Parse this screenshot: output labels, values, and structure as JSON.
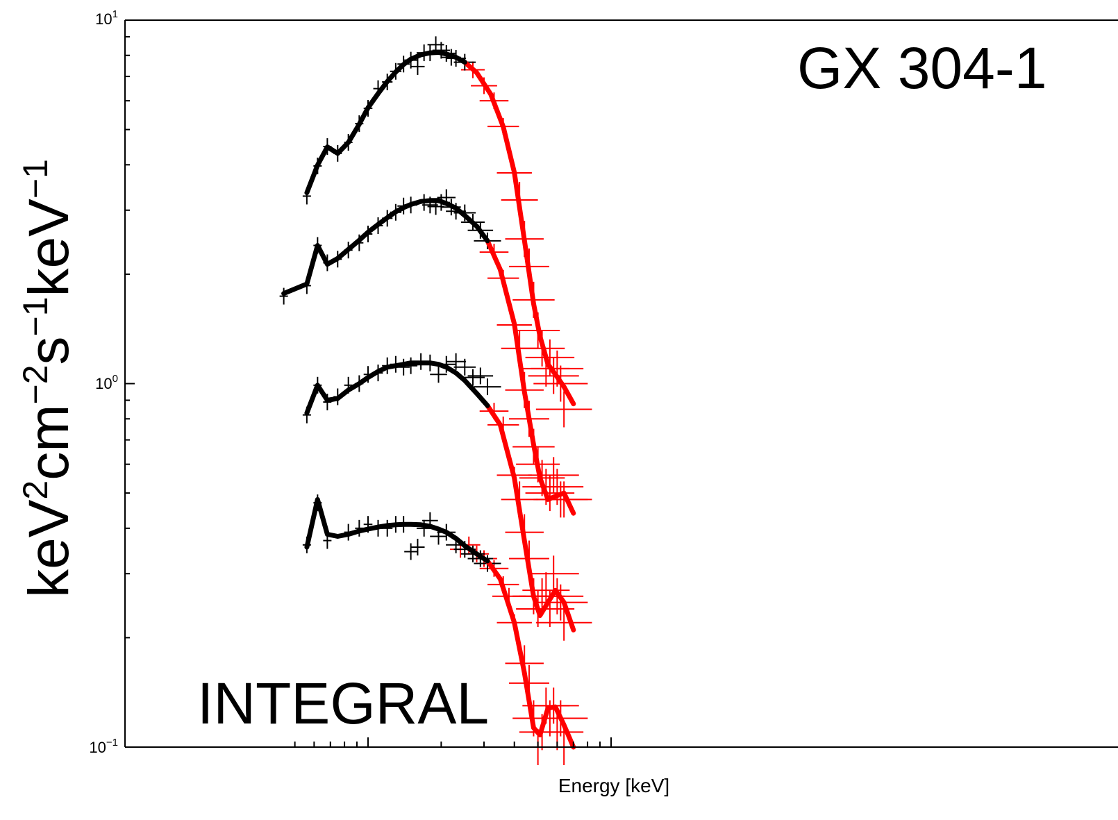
{
  "chart_data": {
    "type": "line",
    "title": "",
    "xlabel": "Energy [keV]",
    "ylabel_parts": [
      "keV",
      "2",
      "cm",
      "−2",
      "s",
      "−1",
      "keV",
      "−1"
    ],
    "yscale": "log",
    "xscale": "log",
    "ylim": [
      0.1,
      10
    ],
    "xlim": [
      4.5,
      100
    ],
    "grid": false,
    "legend": "none",
    "y_ticks": [
      {
        "value": 10,
        "base": "10",
        "exp": "1"
      },
      {
        "value": 1,
        "base": "10",
        "exp": "0"
      },
      {
        "value": 0.1,
        "base": "10",
        "exp": "−1"
      }
    ],
    "x_minor_ticks": [
      5,
      6,
      7,
      8,
      9,
      10,
      20,
      30,
      40,
      50,
      60,
      70,
      80,
      90,
      100
    ],
    "annotations": [
      {
        "text": "GX 304-1",
        "position": "top-right"
      },
      {
        "text": "INTEGRAL",
        "position": "bottom-left"
      }
    ],
    "colors": {
      "jemx": "#000000",
      "isgri": "#ff0000",
      "axis": "#000000"
    },
    "series": [
      {
        "model_jemx": [
          [
            5.6,
            3.35
          ],
          [
            6.2,
            3.99
          ],
          [
            6.8,
            4.48
          ],
          [
            7.5,
            4.3
          ],
          [
            8.3,
            4.61
          ],
          [
            9.2,
            5.17
          ],
          [
            10,
            5.74
          ],
          [
            11,
            6.28
          ],
          [
            12,
            6.78
          ],
          [
            13,
            7.2
          ],
          [
            14,
            7.55
          ],
          [
            15,
            7.81
          ],
          [
            16.5,
            8.03
          ],
          [
            18,
            8.13
          ],
          [
            19.5,
            8.15
          ],
          [
            21,
            8.07
          ],
          [
            23,
            7.9
          ],
          [
            25,
            7.66
          ]
        ],
        "model_isgri": [
          [
            25,
            7.66
          ],
          [
            28,
            7.17
          ],
          [
            32,
            6.25
          ],
          [
            36,
            5.09
          ],
          [
            40,
            3.81
          ],
          [
            44,
            2.48
          ],
          [
            48,
            1.66
          ],
          [
            51,
            1.35
          ],
          [
            55,
            1.13
          ],
          [
            59,
            1.06
          ],
          [
            64,
            0.98
          ],
          [
            70,
            0.88
          ]
        ],
        "points_jemx": [
          [
            5.6,
            3.28
          ],
          [
            6.2,
            3.97
          ],
          [
            6.8,
            4.49
          ],
          [
            7.5,
            4.3
          ],
          [
            8.3,
            4.61
          ],
          [
            9.2,
            5.19
          ],
          [
            10,
            5.72
          ],
          [
            11,
            6.48
          ],
          [
            12,
            6.76
          ],
          [
            13,
            7.23
          ],
          [
            14,
            7.57
          ],
          [
            15,
            7.76
          ],
          [
            16,
            7.45
          ],
          [
            17,
            8.13
          ],
          [
            18,
            8.13
          ],
          [
            19,
            8.56
          ],
          [
            20,
            8.26
          ],
          [
            21,
            8.1
          ],
          [
            22,
            7.9
          ],
          [
            23,
            7.85
          ],
          [
            25,
            7.66
          ]
        ],
        "points_isgri": [
          [
            27,
            7.3
          ],
          [
            30,
            6.6
          ],
          [
            33,
            6.0
          ],
          [
            36,
            5.1
          ],
          [
            40,
            3.8
          ],
          [
            42,
            3.2
          ],
          [
            44,
            2.5
          ],
          [
            46,
            2.1
          ],
          [
            48,
            1.7
          ],
          [
            50,
            1.4
          ],
          [
            52,
            1.25
          ],
          [
            54,
            1.1
          ],
          [
            56,
            1.18
          ],
          [
            58,
            1.05
          ],
          [
            60,
            1.1
          ],
          [
            62,
            1.0
          ],
          [
            64,
            0.85
          ]
        ]
      },
      {
        "model_jemx": [
          [
            4.5,
            1.77
          ],
          [
            5.6,
            1.88
          ],
          [
            6.2,
            2.4
          ],
          [
            6.8,
            2.13
          ],
          [
            7.5,
            2.21
          ],
          [
            8.3,
            2.34
          ],
          [
            9.2,
            2.48
          ],
          [
            10,
            2.61
          ],
          [
            11,
            2.74
          ],
          [
            12,
            2.86
          ],
          [
            13,
            2.97
          ],
          [
            14,
            3.05
          ],
          [
            15,
            3.11
          ],
          [
            16.5,
            3.17
          ],
          [
            18,
            3.19
          ],
          [
            19.5,
            3.19
          ],
          [
            21,
            3.13
          ],
          [
            23,
            3.04
          ],
          [
            25,
            2.9
          ],
          [
            28,
            2.71
          ],
          [
            31,
            2.47
          ]
        ],
        "model_isgri": [
          [
            31,
            2.47
          ],
          [
            35,
            2.06
          ],
          [
            40,
            1.46
          ],
          [
            44,
            0.95
          ],
          [
            48,
            0.68
          ],
          [
            51,
            0.55
          ],
          [
            55,
            0.48
          ],
          [
            59,
            0.49
          ],
          [
            64,
            0.5
          ],
          [
            70,
            0.44
          ]
        ],
        "points_jemx": [
          [
            4.5,
            1.74
          ],
          [
            5.6,
            1.86
          ],
          [
            6.2,
            2.4
          ],
          [
            6.8,
            2.15
          ],
          [
            7.5,
            2.2
          ],
          [
            8.3,
            2.33
          ],
          [
            9.2,
            2.44
          ],
          [
            10,
            2.58
          ],
          [
            11,
            2.72
          ],
          [
            12,
            2.85
          ],
          [
            13,
            2.96
          ],
          [
            14,
            3.08
          ],
          [
            15,
            3.1
          ],
          [
            17,
            3.15
          ],
          [
            18,
            3.1
          ],
          [
            19,
            3.07
          ],
          [
            20,
            3.15
          ],
          [
            21,
            3.25
          ],
          [
            22,
            3.06
          ],
          [
            23,
            2.98
          ],
          [
            25,
            2.95
          ],
          [
            27,
            2.78
          ],
          [
            29,
            2.64
          ],
          [
            31,
            2.47
          ]
        ],
        "points_isgri": [
          [
            33,
            2.3
          ],
          [
            36,
            1.95
          ],
          [
            40,
            1.45
          ],
          [
            42,
            1.25
          ],
          [
            44,
            0.96
          ],
          [
            46,
            0.8
          ],
          [
            48,
            0.67
          ],
          [
            50,
            0.6
          ],
          [
            52,
            0.55
          ],
          [
            54,
            0.52
          ],
          [
            56,
            0.5
          ],
          [
            58,
            0.56
          ],
          [
            60,
            0.52
          ],
          [
            62,
            0.48
          ],
          [
            64,
            0.48
          ]
        ]
      },
      {
        "model_jemx": [
          [
            5.6,
            0.83
          ],
          [
            6.2,
            0.99
          ],
          [
            6.8,
            0.9
          ],
          [
            7.5,
            0.91
          ],
          [
            8.3,
            0.96
          ],
          [
            9.2,
            1.0
          ],
          [
            10,
            1.04
          ],
          [
            11,
            1.08
          ],
          [
            12,
            1.11
          ],
          [
            13,
            1.12
          ],
          [
            14,
            1.13
          ],
          [
            15,
            1.14
          ],
          [
            16.5,
            1.14
          ],
          [
            18,
            1.14
          ],
          [
            19.5,
            1.13
          ],
          [
            21,
            1.11
          ],
          [
            23,
            1.07
          ],
          [
            25,
            1.02
          ],
          [
            28,
            0.94
          ],
          [
            31,
            0.87
          ]
        ],
        "model_isgri": [
          [
            31,
            0.87
          ],
          [
            35,
            0.77
          ],
          [
            40,
            0.55
          ],
          [
            44,
            0.37
          ],
          [
            48,
            0.26
          ],
          [
            51,
            0.23
          ],
          [
            55,
            0.25
          ],
          [
            59,
            0.27
          ],
          [
            64,
            0.25
          ],
          [
            70,
            0.21
          ]
        ],
        "points_jemx": [
          [
            5.6,
            0.82
          ],
          [
            6.2,
            0.99
          ],
          [
            6.8,
            0.89
          ],
          [
            7.5,
            0.92
          ],
          [
            8.3,
            0.99
          ],
          [
            9.2,
            1.0
          ],
          [
            10,
            1.06
          ],
          [
            11,
            1.07
          ],
          [
            12,
            1.12
          ],
          [
            13,
            1.13
          ],
          [
            14,
            1.11
          ],
          [
            15,
            1.12
          ],
          [
            16.5,
            1.15
          ],
          [
            18,
            1.14
          ],
          [
            19.5,
            1.06
          ],
          [
            21,
            1.13
          ],
          [
            23,
            1.15
          ],
          [
            25,
            1.11
          ],
          [
            27,
            1.04
          ],
          [
            29,
            1.05
          ],
          [
            31,
            0.98
          ]
        ],
        "points_isgri": [
          [
            33,
            0.84
          ],
          [
            36,
            0.77
          ],
          [
            40,
            0.56
          ],
          [
            42,
            0.48
          ],
          [
            44,
            0.39
          ],
          [
            46,
            0.33
          ],
          [
            48,
            0.26
          ],
          [
            50,
            0.24
          ],
          [
            52,
            0.26
          ],
          [
            54,
            0.27
          ],
          [
            56,
            0.24
          ],
          [
            58,
            0.3
          ],
          [
            60,
            0.26
          ],
          [
            62,
            0.25
          ],
          [
            64,
            0.22
          ]
        ]
      },
      {
        "model_jemx": [
          [
            5.6,
            0.355
          ],
          [
            6.2,
            0.48
          ],
          [
            6.8,
            0.385
          ],
          [
            7.5,
            0.38
          ],
          [
            8.3,
            0.385
          ],
          [
            9.2,
            0.393
          ],
          [
            10,
            0.398
          ],
          [
            11,
            0.403
          ],
          [
            12,
            0.407
          ],
          [
            13,
            0.409
          ],
          [
            14,
            0.41
          ],
          [
            15,
            0.41
          ],
          [
            16.5,
            0.409
          ],
          [
            18,
            0.405
          ],
          [
            19.5,
            0.398
          ],
          [
            21,
            0.39
          ],
          [
            23,
            0.375
          ],
          [
            25,
            0.358
          ],
          [
            28,
            0.34
          ],
          [
            31,
            0.325
          ]
        ],
        "model_isgri": [
          [
            31,
            0.325
          ],
          [
            35,
            0.29
          ],
          [
            40,
            0.22
          ],
          [
            44,
            0.16
          ],
          [
            48,
            0.113
          ],
          [
            51,
            0.108
          ],
          [
            55,
            0.128
          ],
          [
            59,
            0.129
          ],
          [
            64,
            0.115
          ],
          [
            70,
            0.1
          ]
        ],
        "points_jemx": [
          [
            5.6,
            0.36
          ],
          [
            6.2,
            0.47
          ],
          [
            6.8,
            0.37
          ],
          [
            8.3,
            0.39
          ],
          [
            9.2,
            0.4
          ],
          [
            10,
            0.41
          ],
          [
            11,
            0.4
          ],
          [
            12,
            0.4
          ],
          [
            13,
            0.41
          ],
          [
            14,
            0.41
          ],
          [
            15,
            0.345
          ],
          [
            16,
            0.355
          ],
          [
            17,
            0.4
          ],
          [
            18,
            0.42
          ],
          [
            19.5,
            0.38
          ],
          [
            21,
            0.39
          ],
          [
            23,
            0.36
          ],
          [
            25,
            0.35
          ],
          [
            27,
            0.34
          ],
          [
            29,
            0.33
          ],
          [
            31,
            0.32
          ]
        ],
        "points_isgri": [
          [
            24,
            0.35
          ],
          [
            26,
            0.36
          ],
          [
            28,
            0.34
          ],
          [
            30,
            0.33
          ],
          [
            33,
            0.31
          ],
          [
            36,
            0.28
          ],
          [
            38,
            0.26
          ],
          [
            40,
            0.22
          ],
          [
            44,
            0.17
          ],
          [
            46,
            0.15
          ],
          [
            48,
            0.12
          ],
          [
            50,
            0.1
          ],
          [
            52,
            0.11
          ],
          [
            54,
            0.13
          ],
          [
            56,
            0.12
          ],
          [
            58,
            0.13
          ],
          [
            60,
            0.11
          ],
          [
            62,
            0.12
          ],
          [
            64,
            0.1
          ]
        ]
      }
    ]
  }
}
